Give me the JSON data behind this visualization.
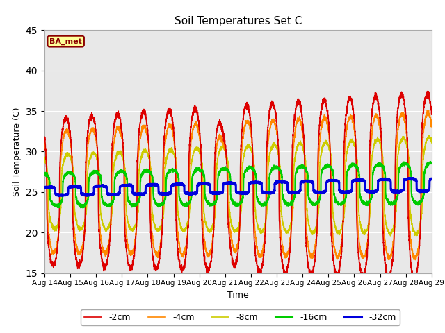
{
  "title": "Soil Temperatures Set C",
  "xlabel": "Time",
  "ylabel": "Soil Temperature (C)",
  "ylim": [
    15,
    45
  ],
  "yticks": [
    15,
    20,
    25,
    30,
    35,
    40,
    45
  ],
  "plot_bg_color": "#e8e8e8",
  "fig_bg_color": "#ffffff",
  "annotation_text": "BA_met",
  "annotation_box_color": "#ffff99",
  "annotation_border_color": "#8b0000",
  "legend_entries": [
    "-2cm",
    "-4cm",
    "-8cm",
    "-16cm",
    "-32cm"
  ],
  "legend_colors": [
    "#dd0000",
    "#ff8800",
    "#cccc00",
    "#00cc00",
    "#0000dd"
  ],
  "line_widths": [
    1.2,
    1.2,
    1.2,
    1.5,
    2.2
  ],
  "start_day": 14,
  "end_day": 29,
  "points_per_day": 288
}
